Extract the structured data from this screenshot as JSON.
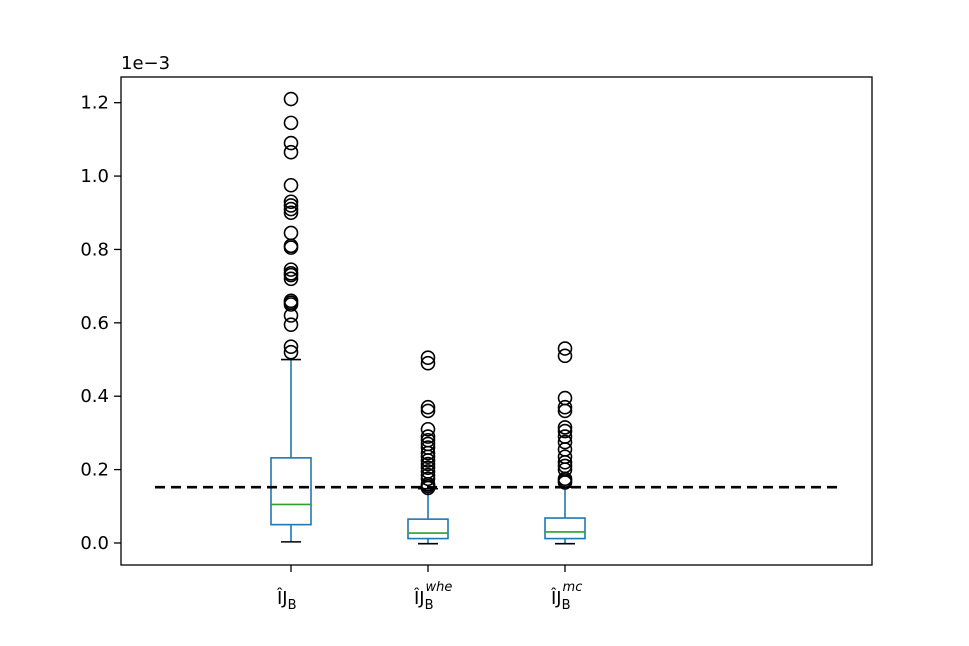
{
  "chart_data": {
    "type": "box",
    "scale_label": "1e−3",
    "ylim": [
      -0.06,
      1.27
    ],
    "yticks": [
      {
        "value": 0.0,
        "label": "0.0"
      },
      {
        "value": 0.2,
        "label": "0.2"
      },
      {
        "value": 0.4,
        "label": "0.4"
      },
      {
        "value": 0.6,
        "label": "0.6"
      },
      {
        "value": 0.8,
        "label": "0.8"
      },
      {
        "value": 1.0,
        "label": "1.0"
      },
      {
        "value": 1.2,
        "label": "1.2"
      }
    ],
    "categories": [
      {
        "main": "ÎJ",
        "sub": "B",
        "sup": ""
      },
      {
        "main": "ÎJ",
        "sub": "B",
        "sup": "whe"
      },
      {
        "main": "ÎJ",
        "sub": "B",
        "sup": "mc"
      }
    ],
    "boxes": [
      {
        "whisker_low": 0.003,
        "q1": 0.05,
        "median": 0.105,
        "q3": 0.232,
        "whisker_high": 0.5,
        "outliers": [
          0.52,
          0.535,
          0.595,
          0.62,
          0.65,
          0.655,
          0.66,
          0.72,
          0.73,
          0.735,
          0.745,
          0.805,
          0.81,
          0.845,
          0.9,
          0.91,
          0.92,
          0.93,
          0.975,
          1.065,
          1.09,
          1.145,
          1.21
        ]
      },
      {
        "whisker_low": -0.002,
        "q1": 0.012,
        "median": 0.027,
        "q3": 0.065,
        "whisker_high": 0.148,
        "outliers": [
          0.15,
          0.155,
          0.16,
          0.175,
          0.185,
          0.195,
          0.205,
          0.215,
          0.225,
          0.235,
          0.245,
          0.26,
          0.27,
          0.28,
          0.29,
          0.31,
          0.36,
          0.37,
          0.49,
          0.505
        ]
      },
      {
        "whisker_low": -0.002,
        "q1": 0.012,
        "median": 0.03,
        "q3": 0.068,
        "whisker_high": 0.152,
        "outliers": [
          0.165,
          0.17,
          0.175,
          0.2,
          0.21,
          0.22,
          0.235,
          0.255,
          0.275,
          0.29,
          0.305,
          0.315,
          0.36,
          0.37,
          0.395,
          0.51,
          0.53
        ]
      }
    ],
    "reference_line": {
      "value": 0.152,
      "style": "dashed"
    },
    "colors": {
      "box": "#1f77b4",
      "median": "#2ca02c",
      "reference": "#000000",
      "outlier": "#000000"
    }
  }
}
